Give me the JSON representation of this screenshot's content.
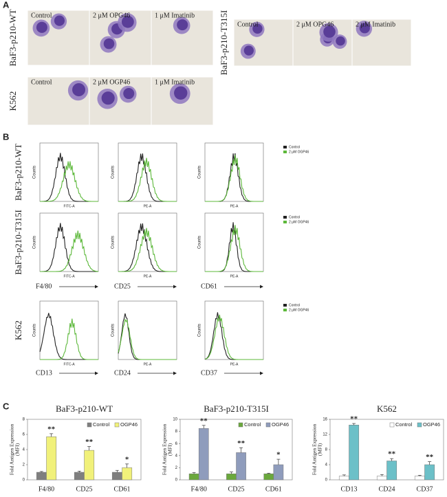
{
  "panel_a": {
    "label": "A",
    "blocks": [
      {
        "rows": [
          {
            "label": "BaF3-p210-WT",
            "conditions": [
              "Control",
              "2 μM OPG46",
              "1 μM Imatinib"
            ]
          },
          {
            "label": "K562",
            "conditions": [
              "Control",
              "2 μM OGP46",
              "1 μM Imatinib"
            ]
          }
        ]
      },
      {
        "rows": [
          {
            "label": "BaF3-p210-T315I",
            "conditions": [
              "Control",
              "2 μM OPG46",
              "2 μM Imatinib"
            ]
          }
        ]
      }
    ]
  },
  "panel_b": {
    "label": "B",
    "y_axis": "Counts",
    "legend": [
      "Control",
      "2 μM OGP46"
    ],
    "rows": [
      {
        "label": "BaF3-p210-WT",
        "x_axis": [
          "FITC-A",
          "PE-A",
          "PE-A"
        ]
      },
      {
        "label": "BaF3-p210-T315I",
        "x_axis": [
          "FITC-A",
          "PE-A",
          "PE-A"
        ]
      },
      {
        "label": "K562",
        "x_axis": [
          "FITC-A",
          "PE-A",
          "PE-A"
        ]
      }
    ],
    "markers": [
      [
        "F4/80",
        "CD25",
        "CD61"
      ],
      [
        "CD13",
        "CD24",
        "CD37"
      ]
    ]
  },
  "panel_c_label": "C",
  "chart_data": [
    {
      "type": "bar",
      "title": "BaF3-p210-WT",
      "ylabel": [
        "Fold Antigen Expression",
        "(MFI)"
      ],
      "categories": [
        "F4/80",
        "CD25",
        "CD61"
      ],
      "ylim": [
        0,
        8
      ],
      "yticks": [
        0,
        2,
        4,
        6,
        8
      ],
      "series": [
        {
          "name": "Control",
          "color": "#7f7f7f",
          "values": [
            1,
            1,
            1
          ],
          "errors": [
            0.1,
            0.15,
            0.25
          ]
        },
        {
          "name": "OGP46",
          "color": "#f1f17a",
          "values": [
            5.7,
            3.9,
            1.6
          ],
          "errors": [
            0.4,
            0.5,
            0.5
          ]
        }
      ],
      "significance": [
        "**",
        "**",
        "*"
      ]
    },
    {
      "type": "bar",
      "title": "BaF3-p210-T315I",
      "ylabel": [
        "Fold Antigen Expression",
        "(MFI)"
      ],
      "categories": [
        "F4/80",
        "CD25",
        "CD61"
      ],
      "ylim": [
        0,
        10
      ],
      "yticks": [
        0,
        2,
        4,
        6,
        8,
        10
      ],
      "series": [
        {
          "name": "Control",
          "color": "#6aa83c",
          "values": [
            1,
            1,
            1
          ],
          "errors": [
            0.2,
            0.3,
            0.1
          ]
        },
        {
          "name": "OGP46",
          "color": "#8f9cbc",
          "values": [
            8.5,
            4.5,
            2.5
          ],
          "errors": [
            0.5,
            0.8,
            0.9
          ]
        }
      ],
      "significance": [
        "**",
        "**",
        "*"
      ]
    },
    {
      "type": "bar",
      "title": "K562",
      "ylabel": [
        "Fold Antigen Expression",
        "(MFI)"
      ],
      "categories": [
        "CD13",
        "CD24",
        "CD37"
      ],
      "ylim": [
        0,
        16
      ],
      "yticks": [
        0,
        4,
        8,
        12,
        16
      ],
      "series": [
        {
          "name": "Control",
          "color": "#ffffff",
          "values": [
            1,
            1,
            1
          ],
          "errors": [
            0.3,
            0.4,
            0.2
          ]
        },
        {
          "name": "OGP46",
          "color": "#6cc0c8",
          "values": [
            14.5,
            5,
            4
          ],
          "errors": [
            0.4,
            0.6,
            0.8
          ]
        }
      ],
      "significance": [
        "**",
        "**",
        "**"
      ]
    }
  ]
}
